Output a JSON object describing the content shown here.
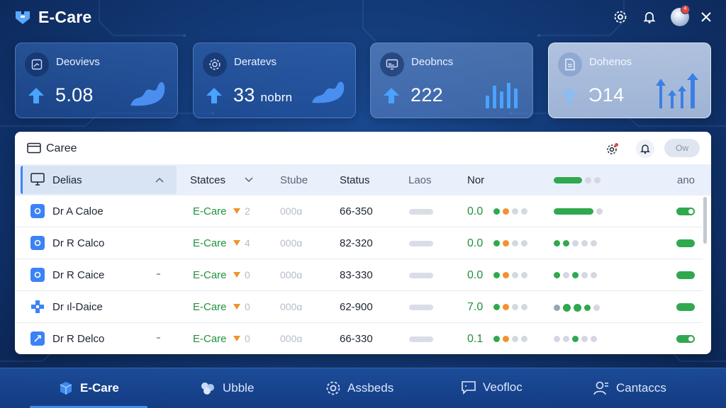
{
  "app": {
    "title": "E-Care"
  },
  "header_icons": [
    "gear-icon",
    "bell-icon",
    "avatar",
    "close-icon"
  ],
  "avatar_badge": "4",
  "cards": [
    {
      "title": "Deovievs",
      "value": "5.08",
      "unit": "",
      "icon": "chart-icon"
    },
    {
      "title": "Deratevs",
      "value": "33",
      "unit": "nobrn",
      "icon": "gear-icon"
    },
    {
      "title": "Deobncs",
      "value": "222",
      "unit": "",
      "icon": "monitor-icon"
    },
    {
      "title": "Dohenos",
      "value": "Ɔ14",
      "unit": "",
      "icon": "document-icon"
    }
  ],
  "panel": {
    "title": "Caree",
    "pill_label": "Ow",
    "columns": {
      "c1": "Delias",
      "c2": "Statces",
      "c3": "Stube",
      "c4": "Status",
      "c5": "Laos",
      "c6": "Nor",
      "c7": "ano"
    },
    "rows": [
      {
        "name": "Dr A Caloe",
        "tag": "E-Care",
        "digit": "2",
        "stub": "000ɑ",
        "status": "66-350",
        "num": "0.0"
      },
      {
        "name": "Dr R Calco",
        "tag": "E-Care",
        "digit": "4",
        "stub": "000ɑ",
        "status": "82-320",
        "num": "0.0"
      },
      {
        "name": "Dr R Caice",
        "tag": "E-Care",
        "digit": "0",
        "stub": "000ɑ",
        "status": "83-330",
        "num": "0.0"
      },
      {
        "name": "Dr ıl-Daice",
        "tag": "E-Care",
        "digit": "0",
        "stub": "000ɑ",
        "status": "62-900",
        "num": "7.0"
      },
      {
        "name": "Dr R Delco",
        "tag": "E-Care",
        "digit": "0",
        "stub": "000ɑ",
        "status": "66-330",
        "num": "0.1"
      }
    ]
  },
  "nav": [
    {
      "label": "E-Care",
      "icon": "cube-icon",
      "active": true
    },
    {
      "label": "Ubble",
      "icon": "group-icon",
      "active": false
    },
    {
      "label": "Assbeds",
      "icon": "settings-icon",
      "active": false
    },
    {
      "label": "Veofloc",
      "icon": "chat-icon",
      "active": false
    },
    {
      "label": "Cantaccs",
      "icon": "contacts-icon",
      "active": false
    }
  ],
  "colors": {
    "accent": "#3b82f6",
    "green": "#22913b",
    "orange": "#f0932b"
  }
}
